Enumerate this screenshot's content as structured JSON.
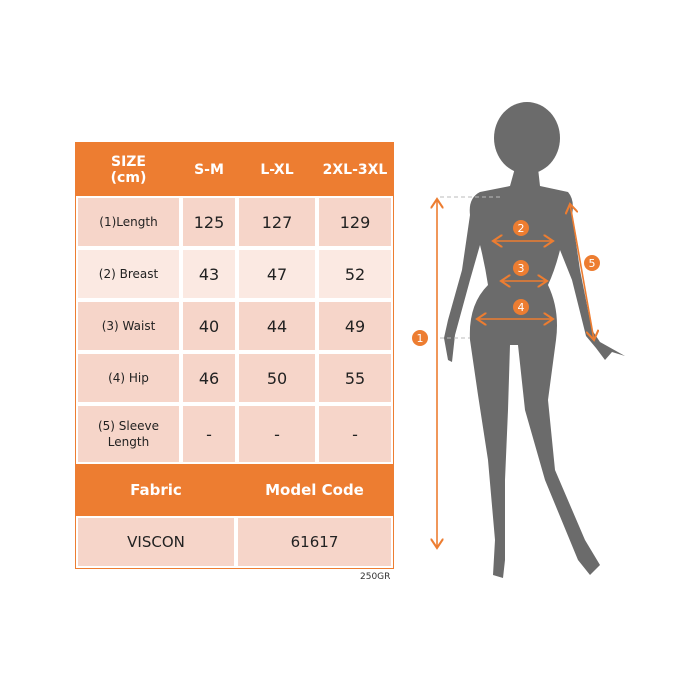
{
  "table": {
    "header": [
      "SIZE\n(cm)",
      "S-M",
      "L-XL",
      "2XL-3XL"
    ],
    "header_line1": "SIZE",
    "header_line2": "(cm)",
    "rows": [
      {
        "label": "(1)Length",
        "values": [
          "125",
          "127",
          "129"
        ]
      },
      {
        "label": "(2) Breast",
        "values": [
          "43",
          "47",
          "52"
        ]
      },
      {
        "label": "(3) Waist",
        "values": [
          "40",
          "44",
          "49"
        ]
      },
      {
        "label": "(4) Hip",
        "values": [
          "46",
          "50",
          "55"
        ]
      },
      {
        "label_line1": "(5) Sleeve",
        "label_line2": "Length",
        "values": [
          "-",
          "-",
          "-"
        ]
      }
    ],
    "fabric_label": "Fabric",
    "model_code_label": "Model Code",
    "fabric_value": "VISCON",
    "model_code_value": "61617"
  },
  "note": "250GR",
  "figure": {
    "markers": [
      "1",
      "2",
      "3",
      "4",
      "5"
    ]
  },
  "colors": {
    "accent": "#ed7d31",
    "row_dark": "#f6d5c9",
    "row_light": "#fbe9e2",
    "silhouette": "#6b6b6b"
  }
}
